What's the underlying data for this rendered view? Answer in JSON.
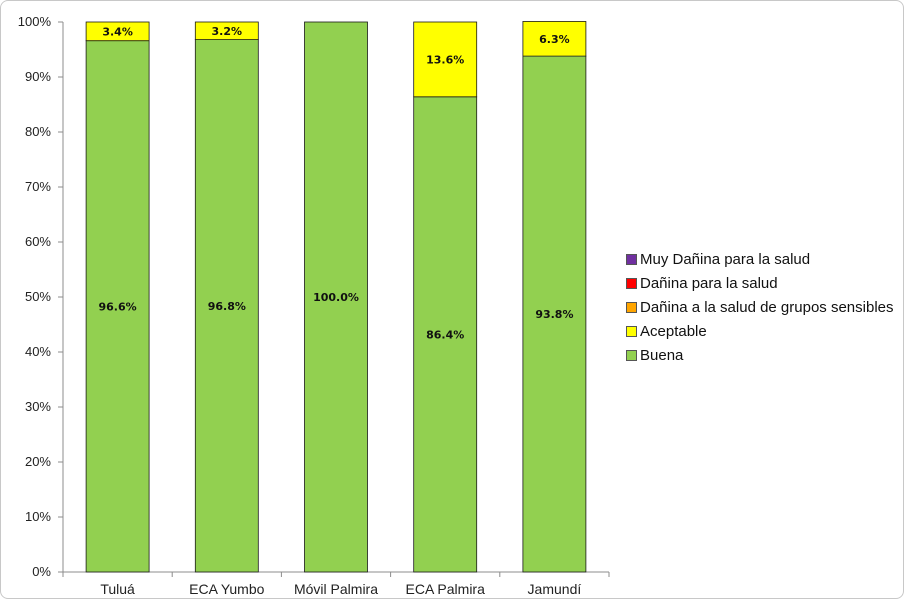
{
  "chart_data": {
    "type": "bar",
    "stacked": true,
    "categories": [
      "Tuluá",
      "ECA Yumbo",
      "Móvil Palmira",
      "ECA Palmira",
      "Jamundí"
    ],
    "series": [
      {
        "name": "Buena",
        "color": "#92d050",
        "values": [
          96.6,
          96.8,
          100.0,
          86.4,
          93.8
        ],
        "labels": [
          "96.6%",
          "96.8%",
          "100.0%",
          "86.4%",
          "93.8%"
        ]
      },
      {
        "name": "Aceptable",
        "color": "#ffff00",
        "values": [
          3.4,
          3.2,
          0,
          13.6,
          6.3
        ],
        "labels": [
          "3.4%",
          "3.2%",
          "",
          "13.6%",
          "6.3%"
        ]
      },
      {
        "name": "Dañina a la salud de grupos sensibles",
        "color": "#ffa500",
        "values": [
          0,
          0,
          0,
          0,
          0
        ],
        "labels": [
          "",
          "",
          "",
          "",
          ""
        ]
      },
      {
        "name": "Dañina para la salud",
        "color": "#ff0000",
        "values": [
          0,
          0,
          0,
          0,
          0
        ],
        "labels": [
          "",
          "",
          "",
          "",
          ""
        ]
      },
      {
        "name": "Muy Dañina para la salud",
        "color": "#7030a0",
        "values": [
          0,
          0,
          0,
          0,
          0
        ],
        "labels": [
          "",
          "",
          "",
          "",
          ""
        ]
      }
    ],
    "yticks": [
      "0%",
      "10%",
      "20%",
      "30%",
      "40%",
      "50%",
      "60%",
      "70%",
      "80%",
      "90%",
      "100%"
    ],
    "ylim": [
      0,
      100
    ],
    "grid": false,
    "legend_position": "right"
  },
  "legend": {
    "items": [
      {
        "label": "Muy Dañina para la salud",
        "color": "#7030a0"
      },
      {
        "label": "Dañina para la salud",
        "color": "#ff0000"
      },
      {
        "label": "Dañina a la salud de grupos sensibles",
        "color": "#ffa500"
      },
      {
        "label": "Aceptable",
        "color": "#ffff00"
      },
      {
        "label": "Buena",
        "color": "#92d050"
      }
    ]
  }
}
